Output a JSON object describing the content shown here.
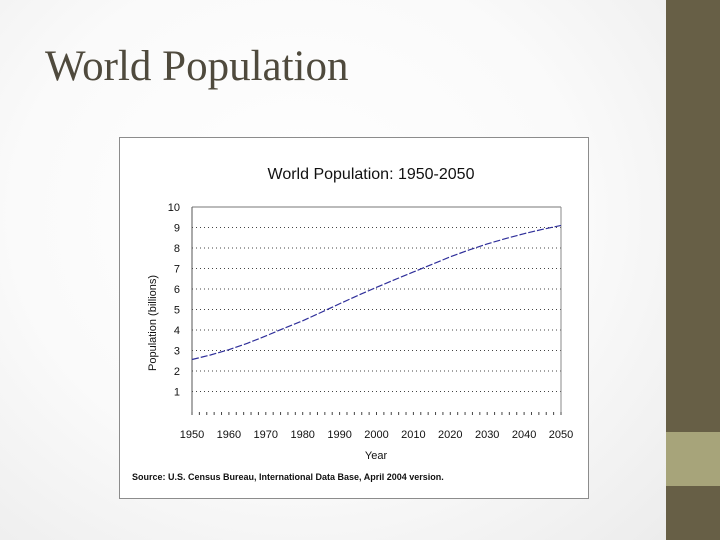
{
  "slide": {
    "title": "World Population"
  },
  "colors": {
    "line": "#2f2f9a",
    "sidebar_dark": "#675f46",
    "sidebar_light": "#a7a47a"
  },
  "chart_data": {
    "type": "line",
    "title": "World Population: 1950-2050",
    "xlabel": "Year",
    "ylabel": "Population (billions)",
    "xlim": [
      1950,
      2050
    ],
    "ylim": [
      0,
      10
    ],
    "x_ticks": [
      1950,
      1960,
      1970,
      1980,
      1990,
      2000,
      2010,
      2020,
      2030,
      2040,
      2050
    ],
    "y_ticks": [
      1,
      2,
      3,
      4,
      5,
      6,
      7,
      8,
      9,
      10
    ],
    "grid": "horizontal",
    "source": "Source: U.S. Census Bureau, International Data Base, April 2004 version.",
    "series": [
      {
        "x": [
          1950,
          1955,
          1960,
          1965,
          1970,
          1975,
          1980,
          1985,
          1990,
          1995,
          2000,
          2005,
          2010,
          2015,
          2020,
          2025,
          2030,
          2035,
          2040,
          2045,
          2050
        ],
        "values": [
          2.56,
          2.78,
          3.04,
          3.35,
          3.71,
          4.09,
          4.45,
          4.86,
          5.28,
          5.69,
          6.08,
          6.46,
          6.83,
          7.2,
          7.57,
          7.9,
          8.2,
          8.46,
          8.7,
          8.91,
          9.1
        ]
      }
    ]
  }
}
